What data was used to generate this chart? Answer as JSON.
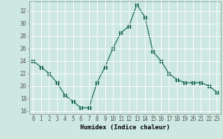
{
  "x": [
    0,
    1,
    2,
    3,
    4,
    5,
    6,
    7,
    8,
    9,
    10,
    11,
    12,
    13,
    14,
    15,
    16,
    17,
    18,
    19,
    20,
    21,
    22,
    23
  ],
  "y": [
    24,
    23,
    22,
    20.5,
    18.5,
    17.5,
    16.5,
    16.5,
    20.5,
    23,
    26,
    28.5,
    29.5,
    33,
    31,
    25.5,
    24,
    22,
    21,
    20.5,
    20.5,
    20.5,
    20,
    19
  ],
  "xlabel": "Humidex (Indice chaleur)",
  "xlim": [
    -0.5,
    23.5
  ],
  "ylim": [
    15.5,
    33.5
  ],
  "yticks": [
    16,
    18,
    20,
    22,
    24,
    26,
    28,
    30,
    32
  ],
  "xtick_labels": [
    "0",
    "1",
    "2",
    "3",
    "4",
    "5",
    "6",
    "7",
    "8",
    "9",
    "10",
    "11",
    "12",
    "13",
    "14",
    "15",
    "16",
    "17",
    "18",
    "19",
    "20",
    "21",
    "22",
    "23"
  ],
  "line_color": "#1a6b5a",
  "marker": "s",
  "marker_size": 2.5,
  "bg_color": "#cce8e0",
  "grid_color": "#ffffff",
  "tick_fontsize": 5.5,
  "xlabel_fontsize": 6.5
}
